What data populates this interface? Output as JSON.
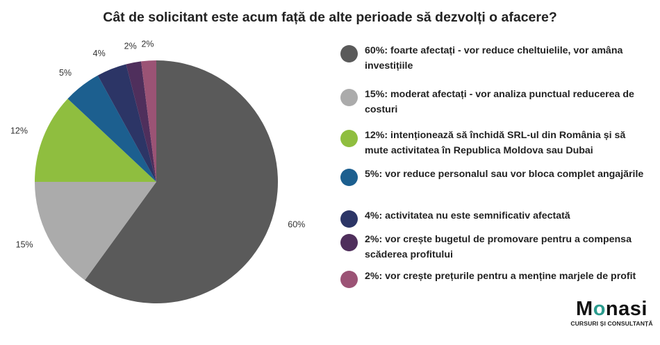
{
  "chart_data": {
    "type": "pie",
    "title": "Cât de solicitant este acum față de alte perioade să dezvolți o afacere?",
    "start": "top",
    "direction": "clockwise",
    "slices": [
      {
        "value": 60,
        "label": "60%",
        "color": "#5a5a5a",
        "legend": "60%: foarte afectați - vor reduce cheltuielile, vor amâna investițiile"
      },
      {
        "value": 15,
        "label": "15%",
        "color": "#ababab",
        "legend": "15%: moderat afectați - vor analiza punctual reducerea de costuri"
      },
      {
        "value": 12,
        "label": "12%",
        "color": "#8fbe3f",
        "legend": "12%: intenționează să închidă SRL-ul din România și să mute activitatea în Republica Moldova sau Dubai"
      },
      {
        "value": 5,
        "label": "5%",
        "color": "#1c5f8f",
        "legend": "5%: vor reduce personalul sau vor bloca complet angajările"
      },
      {
        "value": 4,
        "label": "4%",
        "color": "#2c3566",
        "legend": "4%: activitatea nu este semnificativ afectată"
      },
      {
        "value": 2,
        "label": "2%",
        "color": "#4f2f5c",
        "legend": "2%: vor crește bugetul de promovare pentru a compensa scăderea profitului"
      },
      {
        "value": 2,
        "label": "2%",
        "color": "#9b5375",
        "legend": "2%:  vor crește prețurile pentru a menține marjele de profit"
      }
    ],
    "legend_position": "right"
  },
  "logo": {
    "prefix": "M",
    "accent": "o",
    "suffix": "nasi",
    "subtitle": "CURSURI ȘI CONSULTANȚĂ",
    "accent_color": "#2a9c8e"
  }
}
